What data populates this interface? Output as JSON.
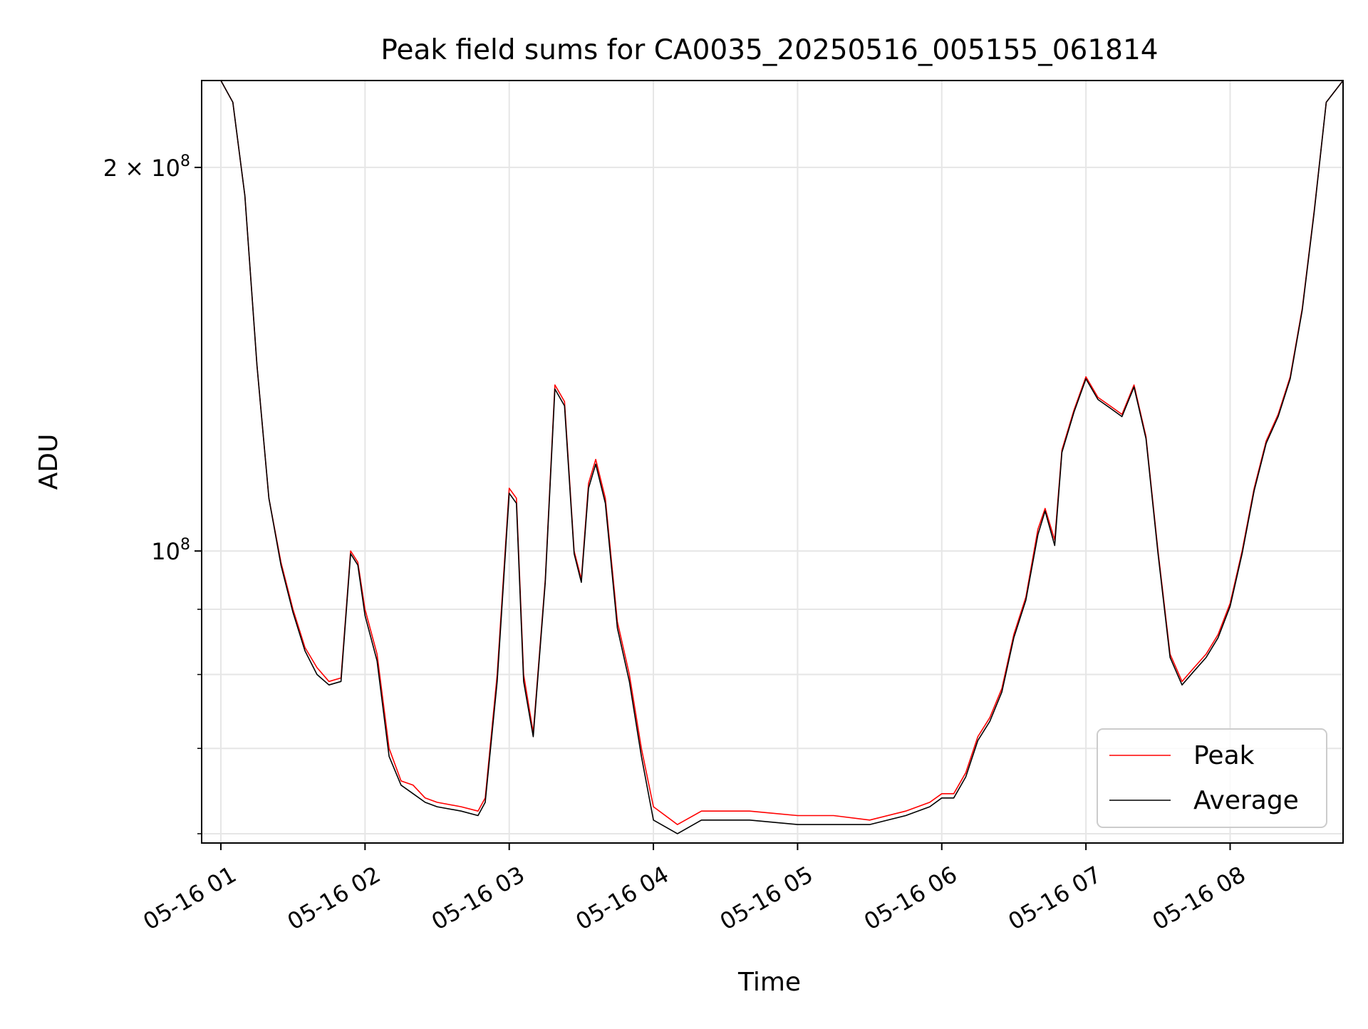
{
  "chart_data": {
    "type": "line",
    "title": "Peak field sums for CA0035_20250516_005155_061814",
    "xlabel": "Time",
    "ylabel": "ADU",
    "y_scale": "log",
    "x_ticks": [
      "05-16 01",
      "05-16 02",
      "05-16 03",
      "05-16 04",
      "05-16 05",
      "05-16 06",
      "05-16 07",
      "05-16 08"
    ],
    "y_tick_labels": {
      "major": [
        {
          "value": 100000000,
          "base": "10",
          "exp": "8"
        },
        {
          "value": 200000000,
          "mantissa": "2",
          "base": "10",
          "exp": "8"
        }
      ]
    },
    "y_minor_ticks": [
      60000000,
      70000000,
      80000000,
      90000000
    ],
    "xlim": [
      "2025-05-16 00:52",
      "2025-05-16 08:47"
    ],
    "ylim": [
      59000000,
      234000000
    ],
    "grid": true,
    "legend_position": "lower-right",
    "series": [
      {
        "name": "Peak",
        "color": "#ff0000",
        "x": [
          "2025-05-16 00:52",
          "2025-05-16 01:00",
          "2025-05-16 01:05",
          "2025-05-16 01:10",
          "2025-05-16 01:15",
          "2025-05-16 01:20",
          "2025-05-16 01:25",
          "2025-05-16 01:30",
          "2025-05-16 01:35",
          "2025-05-16 01:40",
          "2025-05-16 01:45",
          "2025-05-16 01:50",
          "2025-05-16 01:54",
          "2025-05-16 01:57",
          "2025-05-16 02:00",
          "2025-05-16 02:05",
          "2025-05-16 02:10",
          "2025-05-16 02:15",
          "2025-05-16 02:20",
          "2025-05-16 02:25",
          "2025-05-16 02:30",
          "2025-05-16 02:40",
          "2025-05-16 02:47",
          "2025-05-16 02:50",
          "2025-05-16 02:55",
          "2025-05-16 03:00",
          "2025-05-16 03:03",
          "2025-05-16 03:06",
          "2025-05-16 03:10",
          "2025-05-16 03:15",
          "2025-05-16 03:19",
          "2025-05-16 03:23",
          "2025-05-16 03:27",
          "2025-05-16 03:30",
          "2025-05-16 03:33",
          "2025-05-16 03:36",
          "2025-05-16 03:40",
          "2025-05-16 03:45",
          "2025-05-16 03:50",
          "2025-05-16 03:55",
          "2025-05-16 04:00",
          "2025-05-16 04:10",
          "2025-05-16 04:20",
          "2025-05-16 04:40",
          "2025-05-16 05:00",
          "2025-05-16 05:15",
          "2025-05-16 05:30",
          "2025-05-16 05:45",
          "2025-05-16 05:55",
          "2025-05-16 06:00",
          "2025-05-16 06:05",
          "2025-05-16 06:10",
          "2025-05-16 06:15",
          "2025-05-16 06:20",
          "2025-05-16 06:25",
          "2025-05-16 06:30",
          "2025-05-16 06:35",
          "2025-05-16 06:40",
          "2025-05-16 06:43",
          "2025-05-16 06:47",
          "2025-05-16 06:50",
          "2025-05-16 06:55",
          "2025-05-16 07:00",
          "2025-05-16 07:05",
          "2025-05-16 07:10",
          "2025-05-16 07:15",
          "2025-05-16 07:20",
          "2025-05-16 07:25",
          "2025-05-16 07:30",
          "2025-05-16 07:35",
          "2025-05-16 07:40",
          "2025-05-16 07:45",
          "2025-05-16 07:50",
          "2025-05-16 07:55",
          "2025-05-16 08:00",
          "2025-05-16 08:05",
          "2025-05-16 08:10",
          "2025-05-16 08:15",
          "2025-05-16 08:20",
          "2025-05-16 08:25",
          "2025-05-16 08:30",
          "2025-05-16 08:35",
          "2025-05-16 08:40",
          "2025-05-16 08:47"
        ],
        "y": [
          234000000,
          234000000,
          225000000,
          190000000,
          140000000,
          110000000,
          98000000,
          90000000,
          84000000,
          81000000,
          79000000,
          79500000,
          100000000,
          98000000,
          90000000,
          83000000,
          70000000,
          66000000,
          65500000,
          64000000,
          63500000,
          63000000,
          62500000,
          64000000,
          80000000,
          112000000,
          110000000,
          80000000,
          72000000,
          95000000,
          135000000,
          131000000,
          100000000,
          95000000,
          113000000,
          118000000,
          110000000,
          88000000,
          80000000,
          70000000,
          63000000,
          61000000,
          62500000,
          62500000,
          62000000,
          62000000,
          61500000,
          62500000,
          63500000,
          64500000,
          64500000,
          67000000,
          71500000,
          74000000,
          78000000,
          86000000,
          92000000,
          104000000,
          108000000,
          102000000,
          120000000,
          129000000,
          137000000,
          132000000,
          130000000,
          128000000,
          135000000,
          123000000,
          100000000,
          83000000,
          79000000,
          81000000,
          83000000,
          86000000,
          91000000,
          100000000,
          112000000,
          122000000,
          128000000,
          137000000,
          155000000,
          185000000,
          225000000,
          234000000
        ]
      },
      {
        "name": "Average",
        "color": "#000000",
        "x": [
          "2025-05-16 00:52",
          "2025-05-16 01:00",
          "2025-05-16 01:05",
          "2025-05-16 01:10",
          "2025-05-16 01:15",
          "2025-05-16 01:20",
          "2025-05-16 01:25",
          "2025-05-16 01:30",
          "2025-05-16 01:35",
          "2025-05-16 01:40",
          "2025-05-16 01:45",
          "2025-05-16 01:50",
          "2025-05-16 01:54",
          "2025-05-16 01:57",
          "2025-05-16 02:00",
          "2025-05-16 02:05",
          "2025-05-16 02:10",
          "2025-05-16 02:15",
          "2025-05-16 02:20",
          "2025-05-16 02:25",
          "2025-05-16 02:30",
          "2025-05-16 02:40",
          "2025-05-16 02:47",
          "2025-05-16 02:50",
          "2025-05-16 02:55",
          "2025-05-16 03:00",
          "2025-05-16 03:03",
          "2025-05-16 03:06",
          "2025-05-16 03:10",
          "2025-05-16 03:15",
          "2025-05-16 03:19",
          "2025-05-16 03:23",
          "2025-05-16 03:27",
          "2025-05-16 03:30",
          "2025-05-16 03:33",
          "2025-05-16 03:36",
          "2025-05-16 03:40",
          "2025-05-16 03:45",
          "2025-05-16 03:50",
          "2025-05-16 03:55",
          "2025-05-16 04:00",
          "2025-05-16 04:10",
          "2025-05-16 04:20",
          "2025-05-16 04:40",
          "2025-05-16 05:00",
          "2025-05-16 05:15",
          "2025-05-16 05:30",
          "2025-05-16 05:45",
          "2025-05-16 05:55",
          "2025-05-16 06:00",
          "2025-05-16 06:05",
          "2025-05-16 06:10",
          "2025-05-16 06:15",
          "2025-05-16 06:20",
          "2025-05-16 06:25",
          "2025-05-16 06:30",
          "2025-05-16 06:35",
          "2025-05-16 06:40",
          "2025-05-16 06:43",
          "2025-05-16 06:47",
          "2025-05-16 06:50",
          "2025-05-16 06:55",
          "2025-05-16 07:00",
          "2025-05-16 07:05",
          "2025-05-16 07:10",
          "2025-05-16 07:15",
          "2025-05-16 07:20",
          "2025-05-16 07:25",
          "2025-05-16 07:30",
          "2025-05-16 07:35",
          "2025-05-16 07:40",
          "2025-05-16 07:45",
          "2025-05-16 07:50",
          "2025-05-16 07:55",
          "2025-05-16 08:00",
          "2025-05-16 08:05",
          "2025-05-16 08:10",
          "2025-05-16 08:15",
          "2025-05-16 08:20",
          "2025-05-16 08:25",
          "2025-05-16 08:30",
          "2025-05-16 08:35",
          "2025-05-16 08:40",
          "2025-05-16 08:47"
        ],
        "y": [
          234000000,
          234000000,
          225000000,
          190000000,
          140000000,
          110000000,
          97500000,
          89500000,
          83500000,
          80000000,
          78500000,
          79000000,
          99500000,
          97500000,
          89000000,
          82000000,
          69000000,
          65500000,
          64500000,
          63500000,
          63000000,
          62500000,
          62000000,
          63500000,
          79000000,
          111000000,
          109000000,
          79000000,
          71500000,
          94500000,
          134000000,
          130000000,
          99500000,
          94500000,
          112000000,
          117000000,
          109000000,
          87000000,
          79000000,
          69000000,
          61500000,
          60000000,
          61500000,
          61500000,
          61000000,
          61000000,
          61000000,
          62000000,
          63000000,
          64000000,
          64000000,
          66500000,
          71000000,
          73500000,
          77500000,
          85500000,
          91500000,
          103000000,
          107500000,
          101000000,
          119500000,
          128500000,
          136500000,
          131500000,
          129500000,
          127500000,
          134500000,
          122500000,
          99500000,
          82500000,
          78500000,
          80500000,
          82500000,
          85500000,
          90500000,
          99500000,
          111500000,
          121500000,
          127500000,
          136500000,
          154500000,
          184500000,
          225000000,
          234000000
        ]
      }
    ]
  }
}
